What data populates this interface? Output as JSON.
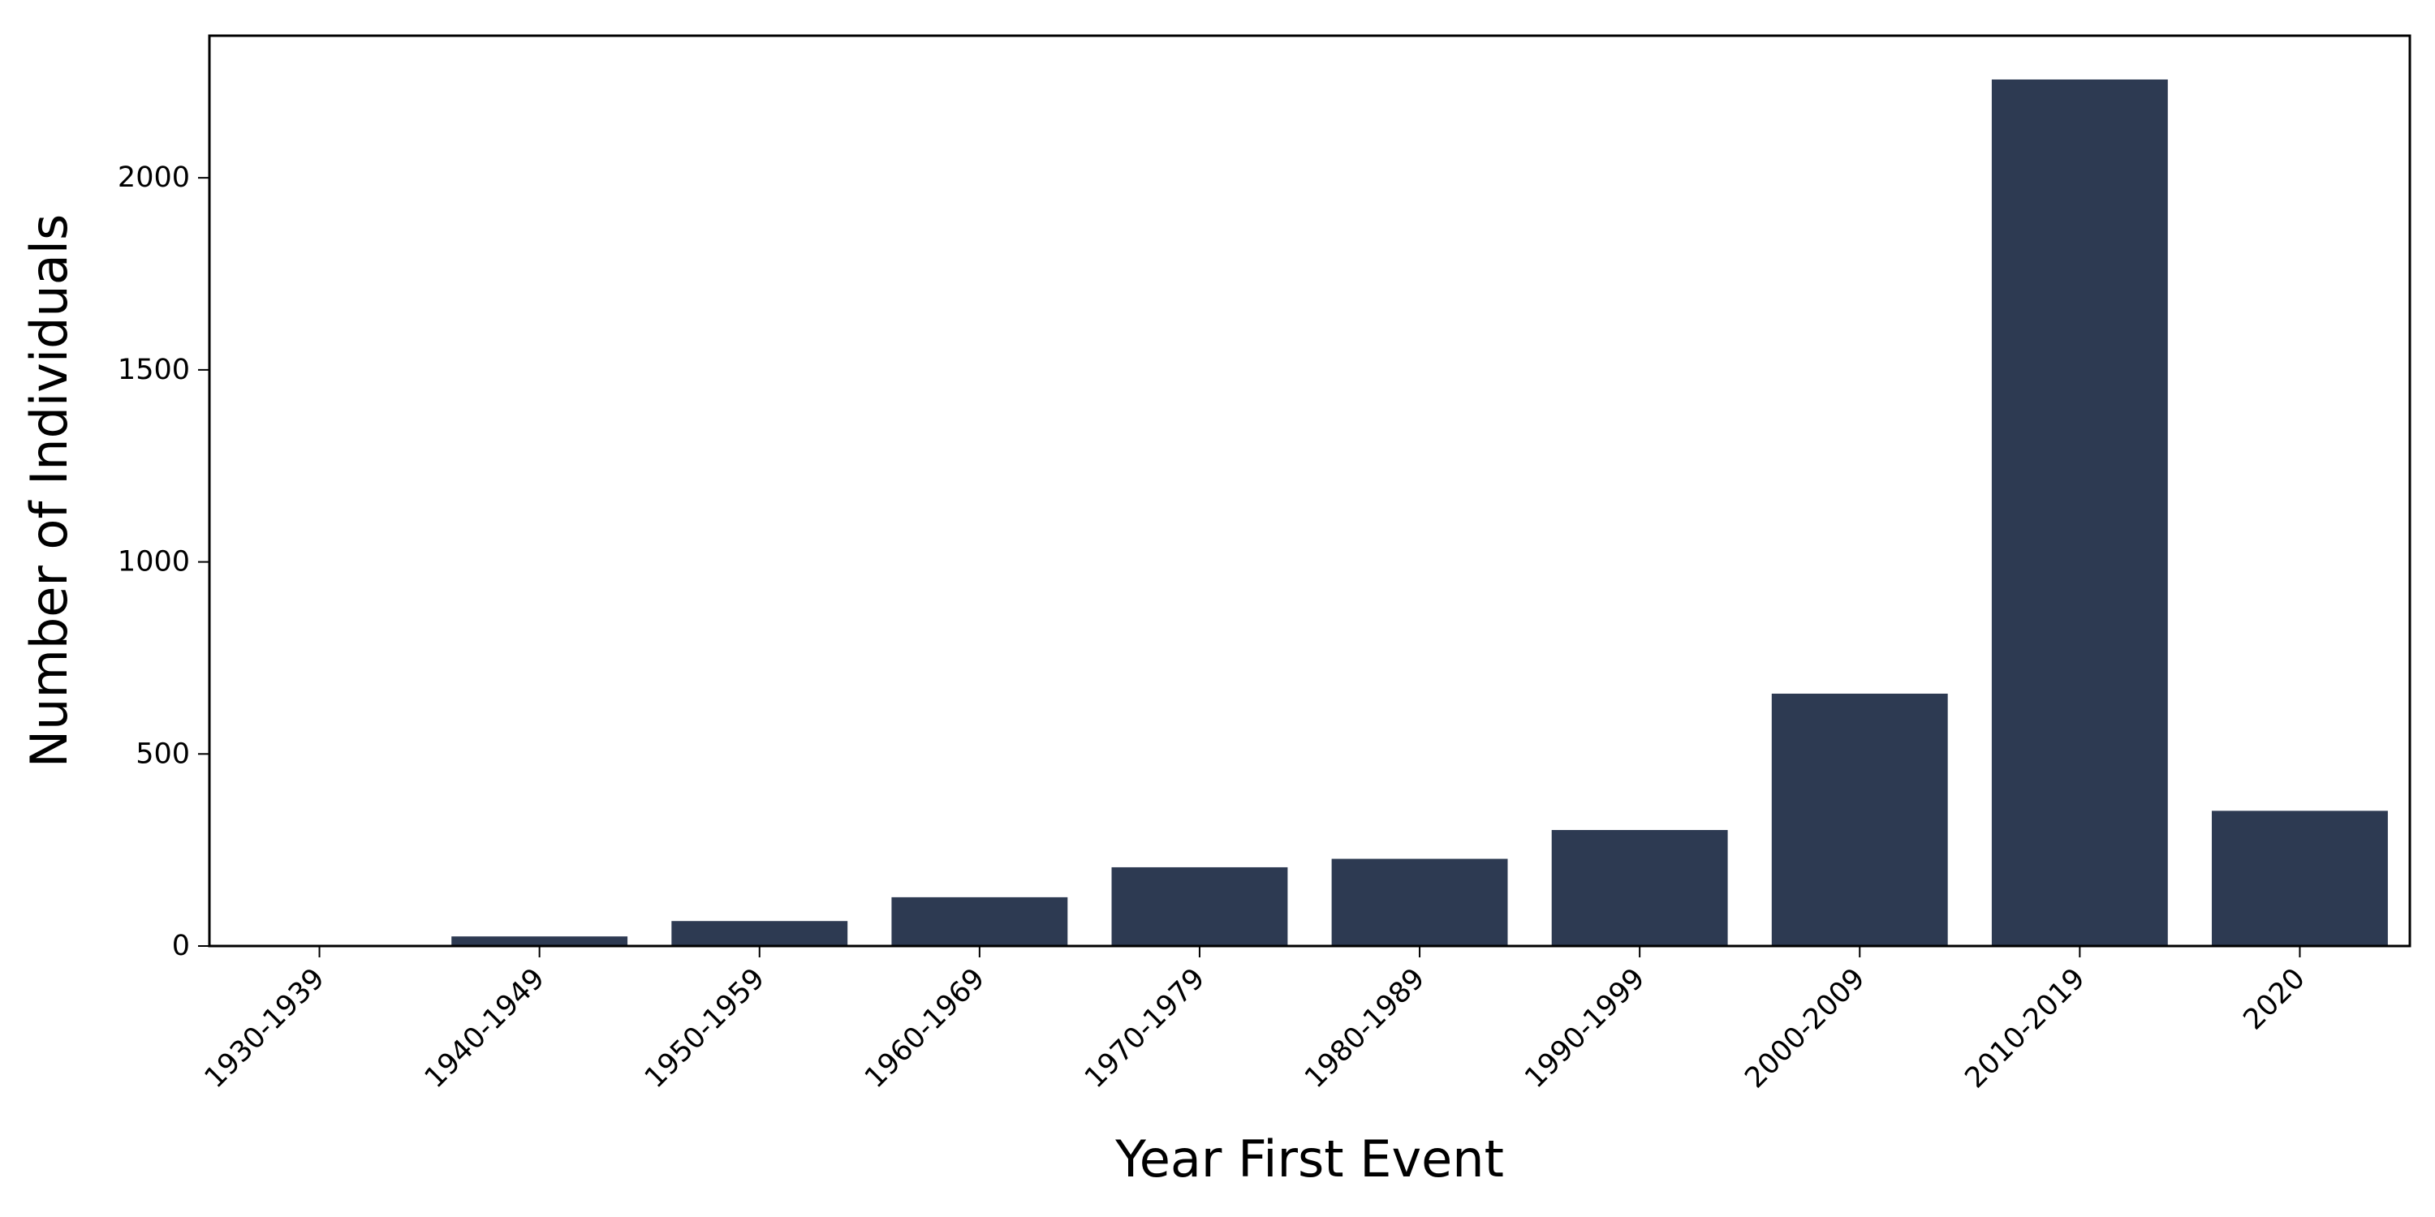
{
  "chart_data": {
    "type": "bar",
    "title": "",
    "xlabel": "Year First Event",
    "ylabel": "Number of Individuals",
    "categories": [
      "1930-1939",
      "1940-1949",
      "1950-1959",
      "1960-1969",
      "1970-1979",
      "1980-1989",
      "1990-1999",
      "2000-2009",
      "2010-2019",
      "2020"
    ],
    "values": [
      2,
      25,
      65,
      127,
      205,
      227,
      302,
      657,
      2256,
      352
    ],
    "ylim": [
      0,
      2370
    ],
    "yticks": [
      0,
      500,
      1000,
      1500,
      2000
    ],
    "grid": false,
    "legend": "none",
    "bar_color": "#2d3a52"
  }
}
